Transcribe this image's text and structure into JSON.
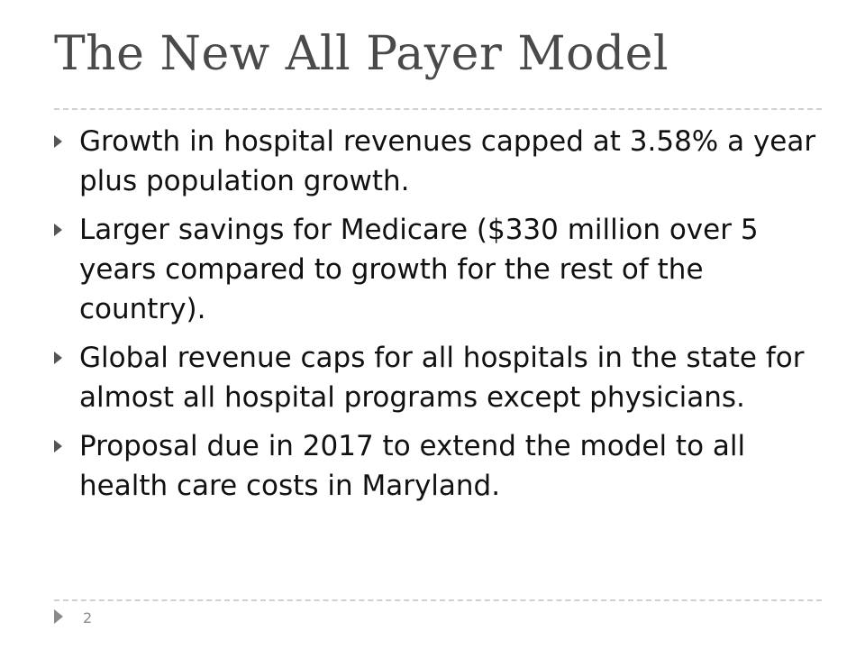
{
  "slide": {
    "title": "The New All Payer Model",
    "bullets": [
      "Growth in hospital revenues capped at 3.58% a year plus population growth.",
      "Larger savings for Medicare ($330 million over 5 years compared to growth for the rest of the country).",
      "Global revenue caps for all hospitals in the state for almost all hospital programs except physicians.",
      "Proposal due in 2017 to extend the model to all health care costs in Maryland."
    ],
    "page_number": "2"
  },
  "colors": {
    "title": "#4a4a4a",
    "body_text": "#111111",
    "bullet_marker": "#555555",
    "rule": "#d0d0d0",
    "footer": "#8a8a8a"
  },
  "icons": {
    "bullet": "triangle-right-icon",
    "footer": "triangle-right-icon"
  }
}
